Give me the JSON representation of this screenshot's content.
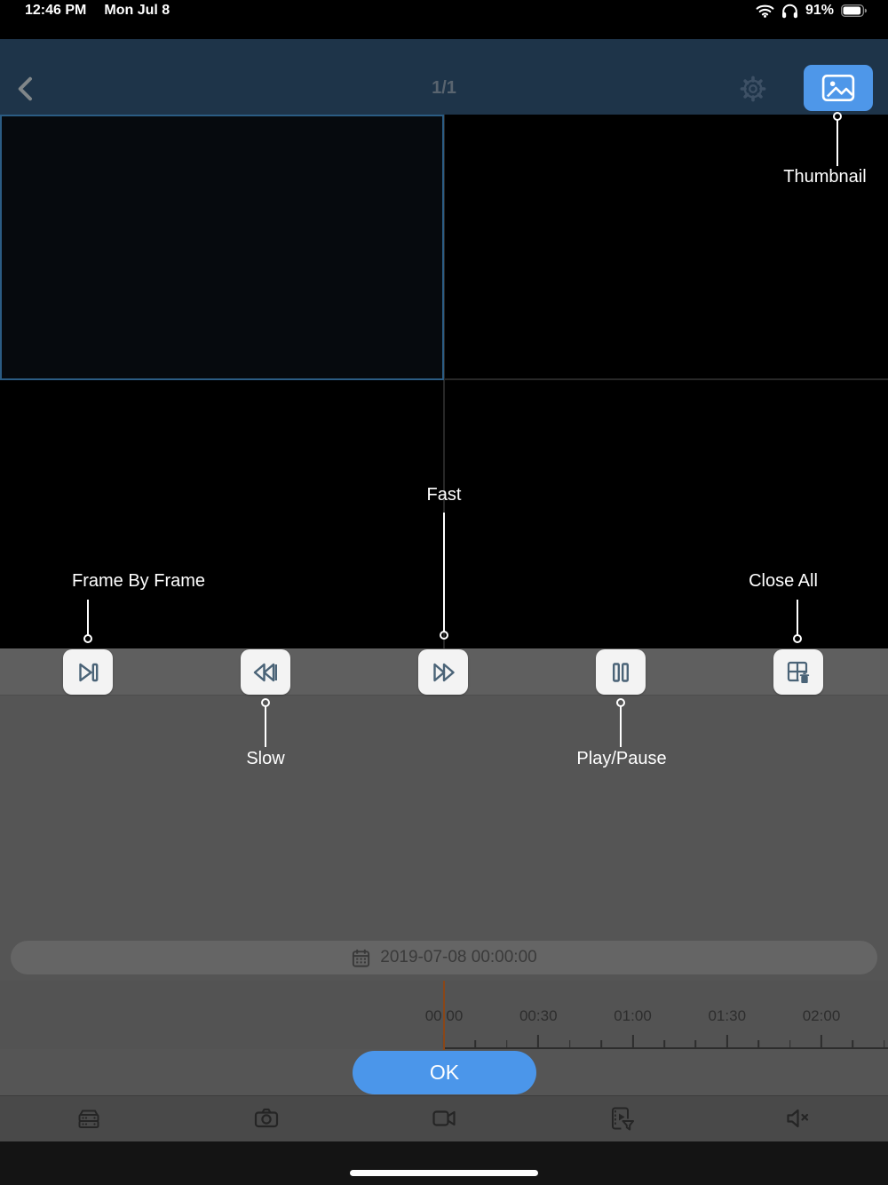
{
  "status_bar": {
    "time": "12:46 PM",
    "date": "Mon Jul 8",
    "battery_percent": "91%"
  },
  "nav": {
    "page_indicator": "1/1"
  },
  "callouts": {
    "thumbnail": "Thumbnail",
    "frame_by_frame": "Frame By Frame",
    "slow": "Slow",
    "fast": "Fast",
    "play_pause": "Play/Pause",
    "close_all": "Close All"
  },
  "player": {
    "datetime": "2019-07-08 00:00:00",
    "ok_label": "OK"
  },
  "timeline": {
    "tick_labels": [
      "00:00",
      "00:30",
      "01:00",
      "01:30",
      "02:00"
    ]
  },
  "icons": {
    "status": [
      "wifi-icon",
      "headphones-icon",
      "battery-icon"
    ],
    "nav": [
      "back-chevron-icon",
      "gear-icon",
      "thumbnail-image-icon"
    ],
    "controls": [
      "frame-by-frame-icon",
      "slow-icon",
      "fast-icon",
      "play-pause-icon",
      "close-all-icon"
    ],
    "toolbar": [
      "device-icon",
      "snapshot-icon",
      "record-icon",
      "record-filter-icon",
      "mute-icon"
    ],
    "date": [
      "calendar-icon"
    ]
  },
  "colors": {
    "accent_blue": "#4b96ea",
    "nav_background": "#1e3449",
    "playhead_orange": "#8a4617",
    "control_bar_gray": "#5f5f5f",
    "selected_cell_border": "#2b5c83"
  }
}
